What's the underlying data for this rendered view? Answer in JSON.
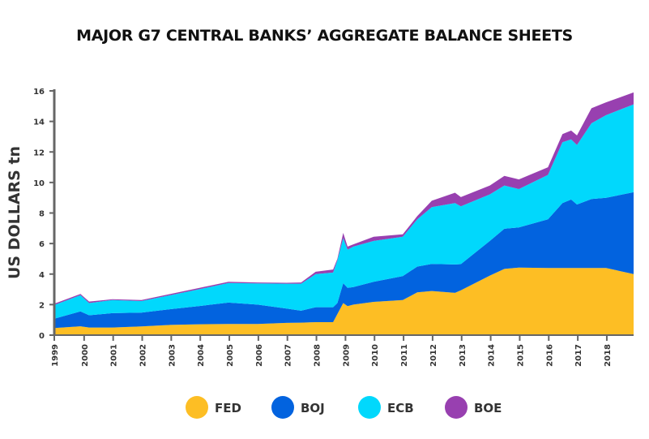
{
  "chart_data": {
    "type": "area",
    "stacked": true,
    "title": "MAJOR G7 CENTRAL BANKS’ AGGREGATE BALANCE SHEETS",
    "xlabel": "",
    "ylabel": "US DOLLARS tn",
    "ylim": [
      0,
      16
    ],
    "yticks": [
      "0",
      "2",
      "4",
      "6",
      "8",
      "10",
      "12",
      "14",
      "16"
    ],
    "xlim": [
      1999,
      2018.95
    ],
    "xticks": [
      "1999",
      "2000",
      "2001",
      "2002",
      "2003",
      "2004",
      "2005",
      "2006",
      "2007",
      "2008",
      "2009",
      "2010",
      "2011",
      "2012",
      "2013",
      "2014",
      "2015",
      "2016",
      "2017",
      "2018"
    ],
    "grid": false,
    "legend_position": "bottom",
    "x": [
      1999.0,
      1999.9,
      2000.2,
      2001.0,
      2002.0,
      2003.0,
      2004.0,
      2005.0,
      2006.0,
      2007.0,
      2007.5,
      2008.0,
      2008.6,
      2008.75,
      2008.95,
      2009.1,
      2009.3,
      2010.0,
      2011.0,
      2011.5,
      2012.0,
      2012.8,
      2013.0,
      2014.0,
      2014.5,
      2015.0,
      2016.0,
      2016.5,
      2016.8,
      2017.0,
      2017.5,
      2018.0,
      2018.95
    ],
    "series": [
      {
        "name": "FED",
        "color": "#FDBE24",
        "values": [
          0.46,
          0.58,
          0.5,
          0.5,
          0.57,
          0.67,
          0.71,
          0.73,
          0.73,
          0.8,
          0.82,
          0.85,
          0.85,
          1.38,
          2.1,
          1.9,
          2.0,
          2.18,
          2.3,
          2.8,
          2.89,
          2.77,
          2.94,
          3.9,
          4.34,
          4.43,
          4.4,
          4.4,
          4.4,
          4.4,
          4.4,
          4.4,
          4.0
        ]
      },
      {
        "name": "BOJ",
        "color": "#0263DF",
        "values": [
          0.62,
          0.98,
          0.8,
          0.94,
          0.9,
          1.03,
          1.2,
          1.4,
          1.27,
          0.94,
          0.78,
          0.98,
          0.98,
          0.72,
          1.3,
          1.2,
          1.15,
          1.32,
          1.57,
          1.69,
          1.77,
          1.86,
          1.71,
          2.27,
          2.63,
          2.63,
          3.19,
          4.25,
          4.48,
          4.16,
          4.52,
          4.6,
          5.36
        ]
      },
      {
        "name": "ECB",
        "color": "#01D8FC",
        "values": [
          0.89,
          1.06,
          0.8,
          0.86,
          0.76,
          0.92,
          1.1,
          1.29,
          1.39,
          1.63,
          1.77,
          2.17,
          2.27,
          2.8,
          2.95,
          2.5,
          2.65,
          2.67,
          2.57,
          3.1,
          3.73,
          4.02,
          3.79,
          3.05,
          2.83,
          2.51,
          2.91,
          3.99,
          3.94,
          3.9,
          4.96,
          5.41,
          5.76
        ]
      },
      {
        "name": "BOE",
        "color": "#9840B0",
        "values": [
          0.09,
          0.08,
          0.1,
          0.05,
          0.07,
          0.08,
          0.09,
          0.08,
          0.06,
          0.06,
          0.08,
          0.15,
          0.2,
          0.1,
          0.35,
          0.2,
          0.15,
          0.28,
          0.16,
          0.21,
          0.41,
          0.68,
          0.6,
          0.58,
          0.63,
          0.63,
          0.5,
          0.53,
          0.58,
          0.62,
          0.98,
          0.84,
          0.78
        ]
      }
    ]
  }
}
